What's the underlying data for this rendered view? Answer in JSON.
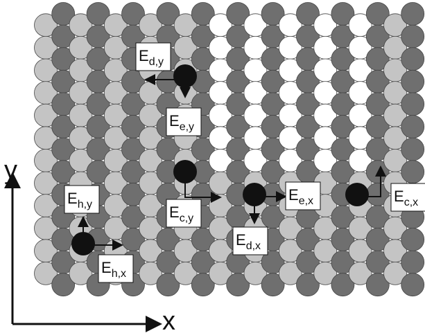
{
  "labels": [
    {
      "main": "E",
      "sub": "d,y"
    },
    {
      "main": "E",
      "sub": "e,y"
    },
    {
      "main": "E",
      "sub": "c,y"
    },
    {
      "main": "E",
      "sub": "e,x"
    },
    {
      "main": "E",
      "sub": "d,x"
    },
    {
      "main": "E",
      "sub": "c,x"
    },
    {
      "main": "E",
      "sub": "h,y"
    },
    {
      "main": "E",
      "sub": "h,x"
    }
  ],
  "axes": {
    "x": "x",
    "y": "y"
  }
}
